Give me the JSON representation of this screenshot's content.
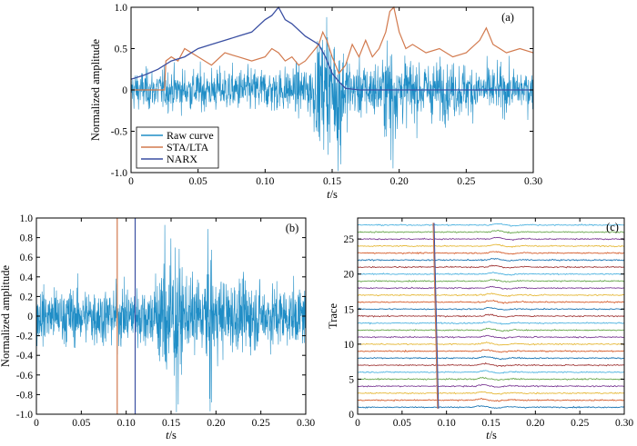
{
  "colors": {
    "raw": "#1f8dc6",
    "sta_lta": "#d27a4e",
    "narx": "#3a4fa2",
    "trace_colors": [
      "#1f77b4",
      "#d65f2e",
      "#e6b93a",
      "#7e3e97",
      "#6aa84f",
      "#4fb3e0",
      "#a23a3a"
    ]
  },
  "chart_data": [
    {
      "id": "a",
      "type": "line",
      "panel_label": "(a)",
      "xlabel_italic": "t",
      "xlabel_unit": "/s",
      "ylabel": "Normalized amplitude",
      "xlim": [
        0,
        0.3
      ],
      "ylim": [
        -1.0,
        1.0
      ],
      "xticks": [
        "0",
        "0.05",
        "0.10",
        "0.15",
        "0.20",
        "0.25",
        "0.30"
      ],
      "yticks": [
        "-1.0",
        "-0.5",
        "0",
        "0.5",
        "1.0"
      ],
      "legend_position": "bottom-left",
      "series": [
        {
          "name": "Raw curve",
          "style": "noise",
          "envelope": [
            [
              0,
              0.3
            ],
            [
              0.13,
              0.35
            ],
            [
              0.14,
              0.75
            ],
            [
              0.145,
              0.9
            ],
            [
              0.155,
              0.85
            ],
            [
              0.165,
              0.4
            ],
            [
              0.185,
              0.45
            ],
            [
              0.195,
              0.8
            ],
            [
              0.2,
              0.5
            ],
            [
              0.3,
              0.3
            ]
          ],
          "extremes": [
            [
              0.146,
              0.88
            ],
            [
              0.1545,
              -0.98
            ],
            [
              0.1565,
              -0.9
            ],
            [
              0.1955,
              -0.95
            ],
            [
              0.194,
              -0.85
            ]
          ]
        },
        {
          "name": "STA/LTA",
          "x": [
            0,
            0.025,
            0.026,
            0.03,
            0.035,
            0.04,
            0.05,
            0.06,
            0.07,
            0.08,
            0.09,
            0.1,
            0.105,
            0.11,
            0.115,
            0.12,
            0.125,
            0.13,
            0.135,
            0.14,
            0.143,
            0.146,
            0.15,
            0.155,
            0.16,
            0.165,
            0.17,
            0.175,
            0.18,
            0.185,
            0.19,
            0.193,
            0.196,
            0.2,
            0.205,
            0.21,
            0.22,
            0.23,
            0.24,
            0.25,
            0.26,
            0.265,
            0.27,
            0.275,
            0.28,
            0.29,
            0.3
          ],
          "y": [
            0.0,
            0.0,
            0.35,
            0.4,
            0.35,
            0.5,
            0.4,
            0.3,
            0.45,
            0.4,
            0.35,
            0.4,
            0.5,
            0.45,
            0.35,
            0.4,
            0.3,
            0.35,
            0.45,
            0.55,
            0.7,
            0.6,
            0.4,
            0.2,
            0.3,
            0.55,
            0.4,
            0.6,
            0.4,
            0.5,
            0.7,
            0.95,
            1.0,
            0.7,
            0.5,
            0.55,
            0.45,
            0.5,
            0.4,
            0.45,
            0.6,
            0.75,
            0.55,
            0.5,
            0.45,
            0.5,
            0.45
          ]
        },
        {
          "name": "NARX",
          "x": [
            0,
            0.01,
            0.02,
            0.03,
            0.04,
            0.05,
            0.06,
            0.07,
            0.08,
            0.09,
            0.1,
            0.105,
            0.11,
            0.115,
            0.12,
            0.13,
            0.14,
            0.145,
            0.15,
            0.155,
            0.16,
            0.17,
            0.2,
            0.25,
            0.3
          ],
          "y": [
            0.13,
            0.18,
            0.25,
            0.35,
            0.4,
            0.5,
            0.55,
            0.6,
            0.65,
            0.7,
            0.85,
            0.9,
            1.0,
            0.85,
            0.8,
            0.65,
            0.55,
            0.4,
            0.2,
            0.1,
            0.02,
            0.0,
            0.0,
            0.0,
            0.0
          ]
        }
      ]
    },
    {
      "id": "b",
      "type": "line",
      "panel_label": "(b)",
      "xlabel_italic": "t",
      "xlabel_unit": "/s",
      "ylabel": "Normalized amplitude",
      "xlim": [
        0,
        0.3
      ],
      "ylim": [
        -1.0,
        1.0
      ],
      "xticks": [
        "0",
        "0.05",
        "0.10",
        "0.15",
        "0.20",
        "0.25",
        "0.30"
      ],
      "yticks": [
        "-1.0",
        "-0.8",
        "-0.6",
        "-0.4",
        "-0.2",
        "0",
        "0.2",
        "0.4",
        "0.6",
        "0.8",
        "1.0"
      ],
      "vlines": [
        {
          "x": 0.09,
          "color_key": "sta_lta"
        },
        {
          "x": 0.11,
          "color_key": "narx"
        }
      ],
      "series": [
        {
          "style": "noise",
          "envelope": [
            [
              0,
              0.35
            ],
            [
              0.13,
              0.4
            ],
            [
              0.14,
              0.8
            ],
            [
              0.145,
              0.95
            ],
            [
              0.155,
              0.85
            ],
            [
              0.165,
              0.45
            ],
            [
              0.185,
              0.5
            ],
            [
              0.195,
              0.85
            ],
            [
              0.2,
              0.5
            ],
            [
              0.3,
              0.35
            ]
          ],
          "extremes": [
            [
              0.143,
              0.93
            ],
            [
              0.156,
              -0.98
            ],
            [
              0.158,
              -0.9
            ],
            [
              0.1935,
              -0.97
            ],
            [
              0.195,
              -0.88
            ]
          ]
        }
      ]
    },
    {
      "id": "c",
      "type": "line",
      "panel_label": "(c)",
      "xlabel_italic": "t",
      "xlabel_unit": "/s",
      "ylabel": "Trace",
      "xlim": [
        0,
        0.3
      ],
      "ylim": [
        0,
        28
      ],
      "xticks": [
        "0",
        "0.05",
        "0.10",
        "0.15",
        "0.20",
        "0.25",
        "0.30"
      ],
      "yticks": [
        "0",
        "5",
        "10",
        "15",
        "20",
        "25"
      ],
      "ytick_values": [
        0,
        5,
        10,
        15,
        20,
        25
      ],
      "trace_count": 27,
      "pick_line": {
        "x_start": 0.09,
        "x_end": 0.085,
        "color_key": "sta_lta"
      },
      "pick_line_2": {
        "x_start": 0.091,
        "x_end": 0.086,
        "color_key": "narx"
      }
    }
  ]
}
